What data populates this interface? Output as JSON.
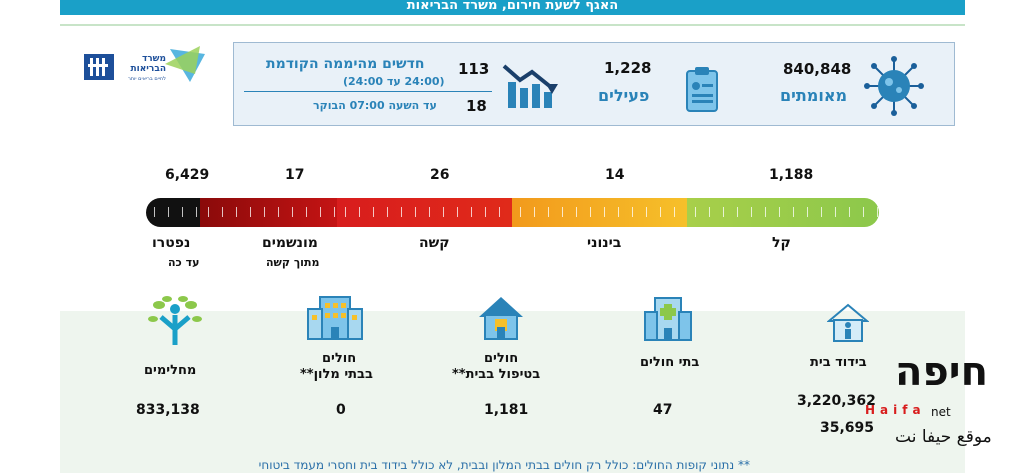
{
  "banner": "האגף לשעת חירום, משרד הבריאות",
  "logo": {
    "line1": "משרד",
    "line2": "הבריאות",
    "line3": "לחיים בריאים יותר"
  },
  "stats": {
    "confirmed": {
      "value": "840,848",
      "label": "מאומתים"
    },
    "active": {
      "value": "1,228",
      "label": "פעילים"
    },
    "new_prev_day": {
      "value": "113",
      "label": "חדשים מהיממה הקודמת",
      "sub": "(24:00 עד 24:00)"
    },
    "new_today": {
      "value": "18",
      "label": "עד השעה 07:00 הבוקר"
    }
  },
  "severity": {
    "mild": {
      "value": "1,188",
      "label": "קל"
    },
    "moderate": {
      "value": "14",
      "label": "בינוני"
    },
    "severe": {
      "value": "26",
      "label": "קשה"
    },
    "ventilated": {
      "value": "17",
      "label": "מונשמים",
      "sub": "מתוך קשה"
    },
    "deceased": {
      "value": "6,429",
      "label": "נפטרו",
      "sub": "עד כה"
    }
  },
  "colors": {
    "green": "#8cc84b",
    "orange": "#f6a81c",
    "red": "#d81d1d",
    "darkred": "#8a0a0a",
    "black": "#111111",
    "accent": "#2a83b8"
  },
  "categories": {
    "recovered": {
      "label": "מחלימים",
      "value": "833,138",
      "icon": "tree-person-icon"
    },
    "hotels": {
      "label1": "חולים",
      "label2": "בבתי מלון**",
      "value": "0",
      "icon": "hotel-icon"
    },
    "home_care": {
      "label1": "חולים",
      "label2": "בטיפול בבית**",
      "value": "1,181",
      "icon": "house-icon"
    },
    "hospitals": {
      "label": "בתי חולים",
      "value": "47",
      "icon": "hospital-icon"
    },
    "isolation": {
      "label": "בידוד בית",
      "value1": "3,220,362",
      "value2": "35,695",
      "icon": "isolation-house-icon"
    }
  },
  "footnote": "** נתוני קופות החולים: כולל רק חולים בבתי המלון ובבית, לא כולל בידוד בית וחסרי מעמד ביטוחי",
  "watermark": {
    "brand": "חיפה",
    "tld": "net",
    "latin": "Haifa",
    "caption": "موقع حيفا نت"
  }
}
